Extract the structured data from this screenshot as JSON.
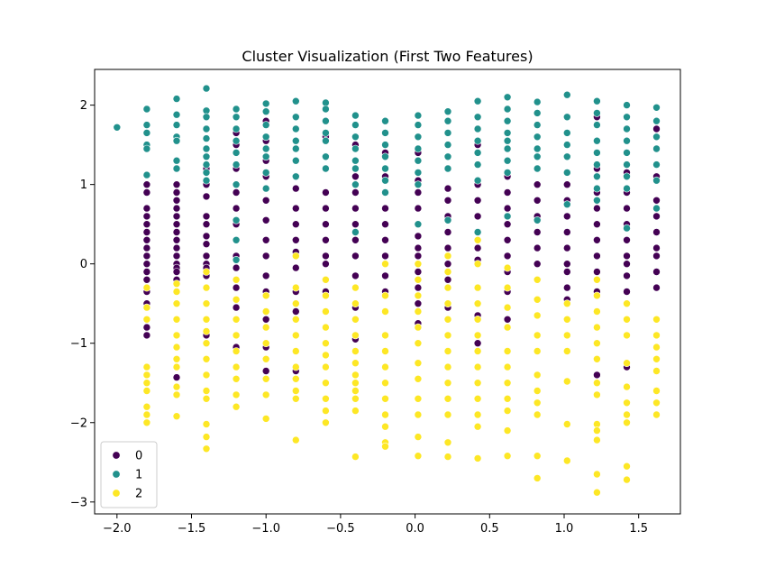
{
  "chart_data": {
    "type": "scatter",
    "title": "Cluster Visualization (First Two Features)",
    "xlabel": "",
    "ylabel": "",
    "xlim": [
      -2.15,
      1.78
    ],
    "ylim": [
      -3.15,
      2.45
    ],
    "xticks": [
      -2.0,
      -1.5,
      -1.0,
      -0.5,
      0.0,
      0.5,
      1.0,
      1.5
    ],
    "xtick_labels": [
      "−2.0",
      "−1.5",
      "−1.0",
      "−0.5",
      "0.0",
      "0.5",
      "1.0",
      "1.5"
    ],
    "yticks": [
      -3,
      -2,
      -1,
      0,
      1,
      2
    ],
    "ytick_labels": [
      "−3",
      "−2",
      "−1",
      "0",
      "1",
      "2"
    ],
    "grid": false,
    "legend_position": "bottom-left",
    "x_columns": [
      -1.8,
      -1.6,
      -1.4,
      -1.2,
      -1.0,
      -0.8,
      -0.6,
      -0.4,
      -0.2,
      0.02,
      0.22,
      0.42,
      0.62,
      0.82,
      1.02,
      1.22,
      1.42,
      1.62
    ],
    "series": [
      {
        "name": "0",
        "color": "#440154",
        "points_by_column": [
          [
            1.45,
            1.0,
            0.9,
            0.7,
            0.6,
            0.5,
            0.4,
            0.3,
            0.2,
            0.1,
            0.0,
            -0.1,
            -0.2,
            -0.35,
            -0.5,
            -0.8,
            -0.9
          ],
          [
            1.0,
            0.9,
            0.8,
            0.7,
            0.6,
            0.5,
            0.4,
            0.3,
            0.2,
            0.1,
            0.0,
            -0.05,
            -0.1,
            -0.2,
            -1.43
          ],
          [
            1.7,
            1.2,
            1.0,
            0.85,
            0.6,
            0.5,
            0.35,
            0.25,
            0.1,
            0.0,
            -0.05,
            -0.15,
            -0.9,
            -1.0
          ],
          [
            1.65,
            1.5,
            1.2,
            0.9,
            0.7,
            0.5,
            0.3,
            0.1,
            -0.05,
            -0.3,
            -0.55,
            -0.9,
            -1.05
          ],
          [
            1.8,
            1.55,
            1.3,
            1.1,
            0.8,
            0.55,
            0.3,
            0.1,
            -0.15,
            -0.35,
            -0.7,
            -1.05,
            -1.35
          ],
          [
            1.1,
            0.95,
            0.7,
            0.5,
            0.3,
            0.15,
            -0.05,
            -0.35,
            -0.6,
            -1.35
          ],
          [
            1.6,
            1.2,
            0.9,
            0.7,
            0.5,
            0.3,
            0.1,
            0.0,
            -0.2,
            -0.35
          ],
          [
            1.5,
            1.1,
            0.9,
            0.7,
            0.5,
            0.3,
            0.1,
            -0.15,
            -0.55,
            -0.95
          ],
          [
            1.8,
            1.4,
            1.1,
            0.7,
            0.5,
            0.3,
            0.1,
            -0.15,
            -0.35
          ],
          [
            1.4,
            1.05,
            0.9,
            0.7,
            0.5,
            0.35,
            0.2,
            0.1,
            -0.1,
            -0.3,
            -0.5,
            -0.75
          ],
          [
            1.2,
            0.95,
            0.8,
            0.6,
            0.4,
            0.2,
            0.0,
            -0.2,
            -0.55
          ],
          [
            1.5,
            1.0,
            0.8,
            0.6,
            0.4,
            0.2,
            0.05,
            -0.3,
            -0.65,
            -1.0
          ],
          [
            1.1,
            0.9,
            0.7,
            0.5,
            0.3,
            0.1,
            -0.1,
            -0.35,
            -0.7
          ],
          [
            1.0,
            0.8,
            0.6,
            0.4,
            0.2,
            0.0,
            -0.2,
            -0.45
          ],
          [
            1.0,
            0.8,
            0.6,
            0.4,
            0.2,
            0.0,
            -0.1,
            -0.3,
            -0.45
          ],
          [
            1.85,
            1.2,
            0.9,
            0.7,
            0.5,
            0.3,
            0.1,
            -0.1,
            -0.35,
            -1.2,
            -1.4
          ],
          [
            1.15,
            0.9,
            0.7,
            0.5,
            0.3,
            0.1,
            0.0,
            -0.15,
            -0.35,
            -1.3
          ],
          [
            1.7,
            1.1,
            0.8,
            0.6,
            0.4,
            0.2,
            0.1,
            -0.1,
            -0.3,
            -1.6
          ]
        ]
      },
      {
        "name": "1",
        "color": "#21918c",
        "points_by_column": [
          [
            1.95,
            1.75,
            1.65,
            1.5,
            1.45,
            1.12
          ],
          [
            2.08,
            1.88,
            1.75,
            1.6,
            1.55,
            1.3,
            1.2
          ],
          [
            2.21,
            1.93,
            1.85,
            1.7,
            1.58,
            1.45,
            1.35,
            1.25,
            1.15,
            1.05
          ],
          [
            1.95,
            1.85,
            1.7,
            1.55,
            1.4,
            1.25,
            1.0,
            0.55,
            0.3,
            0.05
          ],
          [
            2.02,
            1.92,
            1.75,
            1.6,
            1.45,
            1.35,
            1.15,
            0.95
          ],
          [
            2.05,
            1.85,
            1.7,
            1.55,
            1.45,
            1.3,
            1.1
          ],
          [
            2.03,
            1.95,
            1.8,
            1.65,
            1.55,
            1.35,
            1.2
          ],
          [
            1.87,
            1.75,
            1.6,
            1.45,
            1.3,
            1.2,
            1.0,
            0.4
          ],
          [
            1.8,
            1.65,
            1.5,
            1.35,
            1.2,
            1.05,
            0.9
          ],
          [
            1.87,
            1.75,
            1.6,
            1.45,
            1.3,
            1.15,
            1.0,
            0.5
          ],
          [
            1.92,
            1.8,
            1.65,
            1.5,
            1.35,
            1.2,
            0.55
          ],
          [
            2.05,
            1.85,
            1.7,
            1.55,
            1.4,
            1.25,
            1.05,
            0.4
          ],
          [
            2.1,
            1.95,
            1.8,
            1.65,
            1.55,
            1.45,
            1.3,
            1.15,
            0.6
          ],
          [
            2.04,
            1.9,
            1.75,
            1.6,
            1.45,
            1.35,
            1.2,
            0.55
          ],
          [
            2.13,
            1.85,
            1.65,
            1.5,
            1.35,
            1.15,
            0.75
          ],
          [
            2.05,
            1.9,
            1.75,
            1.55,
            1.4,
            1.25,
            1.1,
            0.95,
            0.8
          ],
          [
            2.0,
            1.85,
            1.7,
            1.55,
            1.4,
            1.25,
            1.1,
            0.95,
            0.45
          ],
          [
            1.97,
            1.8,
            1.6,
            1.45,
            1.25,
            1.05,
            0.7
          ]
        ]
      },
      {
        "name": "2",
        "color": "#fde725",
        "points_by_column": [
          [
            -0.3,
            -0.55,
            -0.7,
            -1.3,
            -1.4,
            -1.5,
            -1.6,
            -1.8,
            -1.9,
            -2.0
          ],
          [
            -0.25,
            -0.35,
            -0.5,
            -0.7,
            -0.9,
            -1.05,
            -1.2,
            -1.3,
            -1.55,
            -1.65,
            -1.92
          ],
          [
            -0.1,
            -0.3,
            -0.5,
            -0.7,
            -0.85,
            -1.0,
            -1.2,
            -1.4,
            -1.6,
            -1.7,
            -2.02,
            -2.18,
            -2.33
          ],
          [
            -0.2,
            -0.45,
            -0.7,
            -0.9,
            -1.1,
            -1.3,
            -1.45,
            -1.65,
            -1.8
          ],
          [
            -0.4,
            -0.6,
            -0.8,
            -1.0,
            -1.2,
            -1.45,
            -1.65,
            -1.95
          ],
          [
            0.1,
            -0.3,
            -0.5,
            -0.7,
            -0.9,
            -1.1,
            -1.3,
            -1.45,
            -1.6,
            -1.7,
            -2.22
          ],
          [
            -0.2,
            -0.4,
            -0.6,
            -0.8,
            -1.0,
            -1.15,
            -1.3,
            -1.5,
            -1.7,
            -1.85,
            -2.0
          ],
          [
            -0.3,
            -0.5,
            -0.7,
            -0.9,
            -1.1,
            -1.25,
            -1.4,
            -1.5,
            -1.6,
            -1.7,
            -1.85,
            -2.43
          ],
          [
            0.0,
            -0.4,
            -0.6,
            -0.9,
            -1.1,
            -1.3,
            -1.5,
            -1.7,
            -1.9,
            -2.05,
            -2.25,
            -2.3
          ],
          [
            0.0,
            -0.2,
            -0.4,
            -0.6,
            -0.8,
            -1.0,
            -1.25,
            -1.45,
            -1.7,
            -1.9,
            -2.18,
            -2.42
          ],
          [
            0.1,
            -0.1,
            -0.3,
            -0.5,
            -0.7,
            -0.9,
            -1.1,
            -1.3,
            -1.5,
            -1.7,
            -1.9,
            -2.25,
            -2.43
          ],
          [
            0.3,
            0.0,
            -0.3,
            -0.5,
            -0.7,
            -0.9,
            -1.1,
            -1.3,
            -1.5,
            -1.7,
            -1.9,
            -2.05,
            -2.45
          ],
          [
            -0.05,
            -0.3,
            -0.55,
            -0.8,
            -1.1,
            -1.3,
            -1.5,
            -1.7,
            -1.85,
            -2.1,
            -2.42
          ],
          [
            -0.2,
            -0.45,
            -0.65,
            -0.9,
            -1.1,
            -1.4,
            -1.6,
            -1.75,
            -1.9,
            -2.42,
            -2.7
          ],
          [
            -0.5,
            -0.7,
            -0.9,
            -1.1,
            -1.48,
            -2.02,
            -2.48
          ],
          [
            -0.2,
            -0.4,
            -0.6,
            -0.8,
            -1.0,
            -1.2,
            -1.5,
            -1.65,
            -2.02,
            -2.1,
            -2.22,
            -2.65,
            -2.88
          ],
          [
            -0.5,
            -0.7,
            -0.9,
            -1.25,
            -1.55,
            -1.75,
            -1.9,
            -2.0,
            -2.55,
            -2.72
          ],
          [
            -0.7,
            -0.9,
            -1.05,
            -1.2,
            -1.35,
            -1.6,
            -1.75,
            -1.9
          ]
        ]
      }
    ],
    "extra_points": [
      {
        "series": "1",
        "x": -2.0,
        "y": 1.72
      }
    ]
  }
}
